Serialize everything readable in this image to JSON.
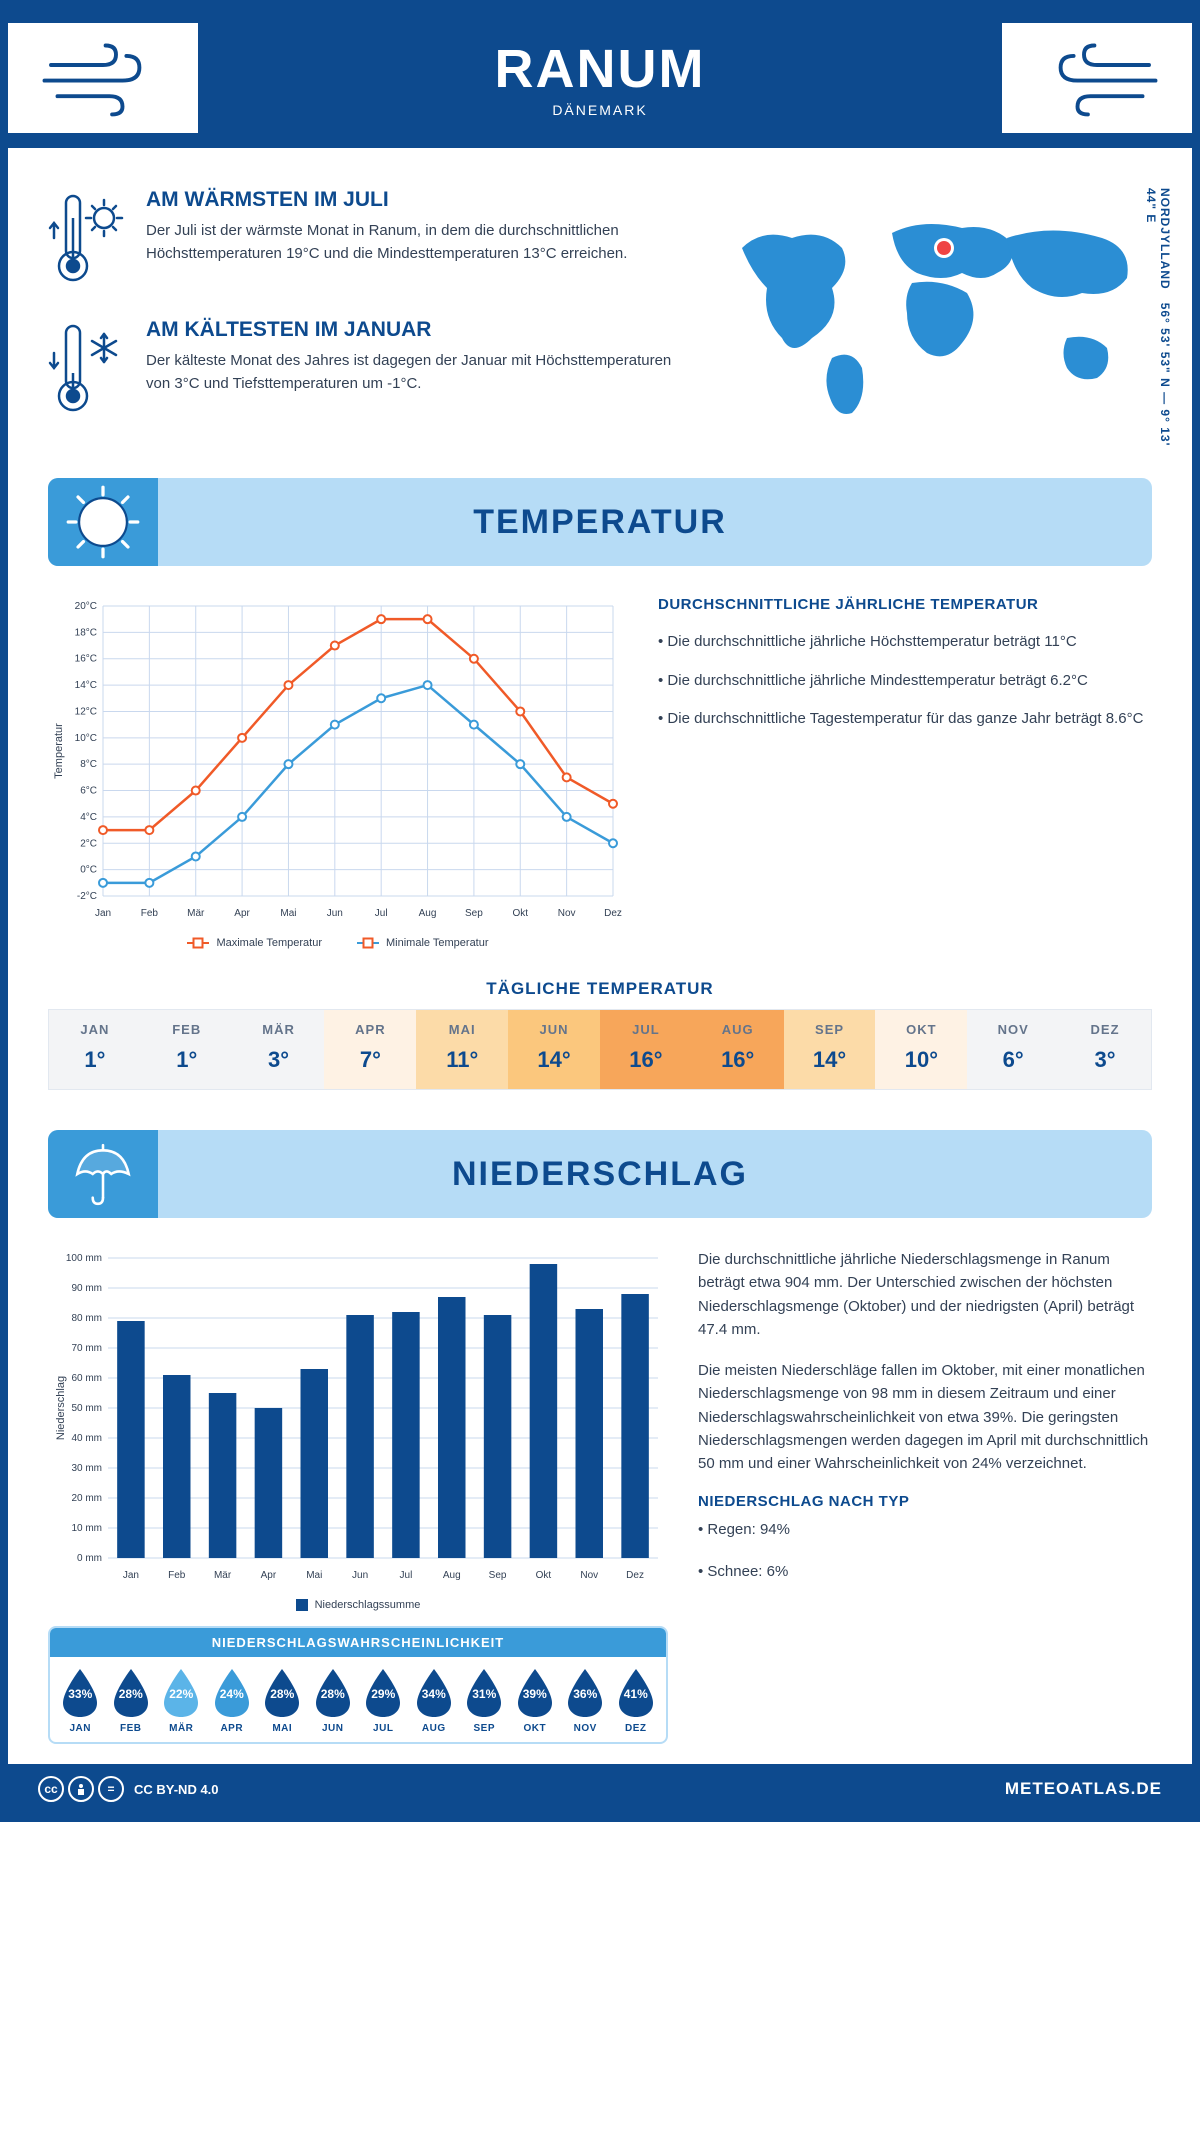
{
  "header": {
    "title": "RANUM",
    "country": "DÄNEMARK"
  },
  "coords": {
    "text": "56° 53' 53\" N — 9° 13' 44\" E",
    "region": "NORDJYLLAND"
  },
  "warm": {
    "title": "AM WÄRMSTEN IM JULI",
    "text": "Der Juli ist der wärmste Monat in Ranum, in dem die durchschnittlichen Höchsttemperaturen 19°C und die Mindesttemperaturen 13°C erreichen."
  },
  "cold": {
    "title": "AM KÄLTESTEN IM JANUAR",
    "text": "Der kälteste Monat des Jahres ist dagegen der Januar mit Höchsttemperaturen von 3°C und Tiefsttemperaturen um -1°C."
  },
  "sections": {
    "temperature": "TEMPERATUR",
    "precipitation": "NIEDERSCHLAG"
  },
  "tempChart": {
    "months": [
      "Jan",
      "Feb",
      "Mär",
      "Apr",
      "Mai",
      "Jun",
      "Jul",
      "Aug",
      "Sep",
      "Okt",
      "Nov",
      "Dez"
    ],
    "max": [
      3,
      3,
      6,
      10,
      14,
      17,
      19,
      19,
      16,
      12,
      7,
      5
    ],
    "min": [
      -1,
      -1,
      1,
      4,
      8,
      11,
      13,
      14,
      11,
      8,
      4,
      2
    ],
    "ylim": [
      -2,
      20
    ],
    "ytick_step": 2,
    "max_color": "#f05a28",
    "min_color": "#3a9bd9",
    "grid_color": "#c9d8ee",
    "background": "#ffffff",
    "ylabel": "Temperatur",
    "legend": {
      "max": "Maximale Temperatur",
      "min": "Minimale Temperatur"
    }
  },
  "tempFacts": {
    "title": "DURCHSCHNITTLICHE JÄHRLICHE TEMPERATUR",
    "b1": "• Die durchschnittliche jährliche Höchsttemperatur beträgt 11°C",
    "b2": "• Die durchschnittliche jährliche Mindesttemperatur beträgt 6.2°C",
    "b3": "• Die durchschnittliche Tagestemperatur für das ganze Jahr beträgt 8.6°C"
  },
  "dailyTempTitle": "TÄGLICHE TEMPERATUR",
  "dailyTemp": {
    "months": [
      "JAN",
      "FEB",
      "MÄR",
      "APR",
      "MAI",
      "JUN",
      "JUL",
      "AUG",
      "SEP",
      "OKT",
      "NOV",
      "DEZ"
    ],
    "values": [
      "1°",
      "1°",
      "3°",
      "7°",
      "11°",
      "14°",
      "16°",
      "16°",
      "14°",
      "10°",
      "6°",
      "3°"
    ],
    "colors": [
      "#f3f4f6",
      "#f3f4f6",
      "#f3f4f6",
      "#fef2e4",
      "#fcdba8",
      "#fbc77d",
      "#f7a65a",
      "#f7a65a",
      "#fcdba8",
      "#fef2e4",
      "#f3f4f6",
      "#f3f4f6"
    ]
  },
  "precipChart": {
    "months": [
      "Jan",
      "Feb",
      "Mär",
      "Apr",
      "Mai",
      "Jun",
      "Jul",
      "Aug",
      "Sep",
      "Okt",
      "Nov",
      "Dez"
    ],
    "values": [
      79,
      61,
      55,
      50,
      63,
      81,
      82,
      87,
      81,
      98,
      83,
      88
    ],
    "ylim": [
      0,
      100
    ],
    "ytick_step": 10,
    "bar_color": "#0d4a8e",
    "grid_color": "#c9d8ee",
    "ylabel": "Niederschlag",
    "legend": "Niederschlagssumme"
  },
  "precipText": {
    "p1": "Die durchschnittliche jährliche Niederschlagsmenge in Ranum beträgt etwa 904 mm. Der Unterschied zwischen der höchsten Niederschlagsmenge (Oktober) und der niedrigsten (April) beträgt 47.4 mm.",
    "p2": "Die meisten Niederschläge fallen im Oktober, mit einer monatlichen Niederschlagsmenge von 98 mm in diesem Zeitraum und einer Niederschlagswahrscheinlichkeit von etwa 39%. Die geringsten Niederschlagsmengen werden dagegen im April mit durchschnittlich 50 mm und einer Wahrscheinlichkeit von 24% verzeichnet.",
    "typeTitle": "NIEDERSCHLAG NACH TYP",
    "t1": "• Regen: 94%",
    "t2": "• Schnee: 6%"
  },
  "probBox": {
    "title": "NIEDERSCHLAGSWAHRSCHEINLICHKEIT",
    "months": [
      "JAN",
      "FEB",
      "MÄR",
      "APR",
      "MAI",
      "JUN",
      "JUL",
      "AUG",
      "SEP",
      "OKT",
      "NOV",
      "DEZ"
    ],
    "values": [
      "33%",
      "28%",
      "22%",
      "24%",
      "28%",
      "28%",
      "29%",
      "34%",
      "31%",
      "39%",
      "36%",
      "41%"
    ],
    "colors": [
      "#0d4a8e",
      "#0d4a8e",
      "#5bb4e8",
      "#3a9bd9",
      "#0d4a8e",
      "#0d4a8e",
      "#0d4a8e",
      "#0d4a8e",
      "#0d4a8e",
      "#0d4a8e",
      "#0d4a8e",
      "#0d4a8e"
    ]
  },
  "footer": {
    "license": "CC BY-ND 4.0",
    "site": "METEOATLAS.DE"
  }
}
